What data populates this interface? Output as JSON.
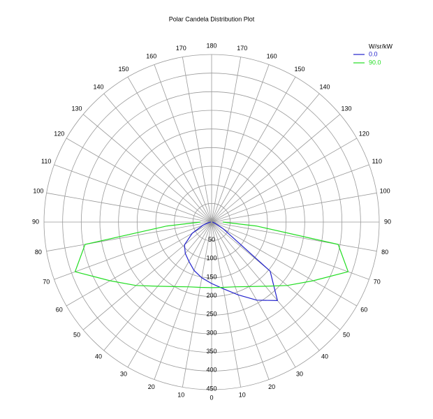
{
  "chart_data": {
    "type": "polar",
    "title": "Polar Candela Distribution Plot",
    "legend_title": "W/sr/kW",
    "legend_position": "upper right",
    "angles": [
      -90,
      -85,
      -80,
      -70,
      -60,
      -50,
      -40,
      -30,
      -20,
      -10,
      0,
      10,
      20,
      30,
      40,
      50,
      60,
      70,
      80,
      85,
      90
    ],
    "series": [
      {
        "name": "0.0",
        "color": "#2222cc",
        "values": [
          2,
          4,
          8,
          25,
          60,
          95,
          110,
          122,
          138,
          152,
          165,
          182,
          208,
          242,
          275,
          205,
          35,
          10,
          4,
          3,
          2
        ]
      },
      {
        "name": "90.0",
        "color": "#22dd22",
        "values": [
          30,
          120,
          345,
          390,
          315,
          265,
          225,
          200,
          185,
          178,
          176,
          178,
          185,
          200,
          225,
          265,
          315,
          390,
          345,
          120,
          30
        ]
      }
    ],
    "rlim": [
      0,
      450
    ],
    "rticks": [
      50,
      100,
      150,
      200,
      250,
      300,
      350,
      400,
      450
    ],
    "angle_ticks": [
      0,
      10,
      20,
      30,
      40,
      50,
      60,
      70,
      80,
      90,
      100,
      110,
      120,
      130,
      140,
      150,
      160,
      170,
      180
    ],
    "grid": true
  }
}
